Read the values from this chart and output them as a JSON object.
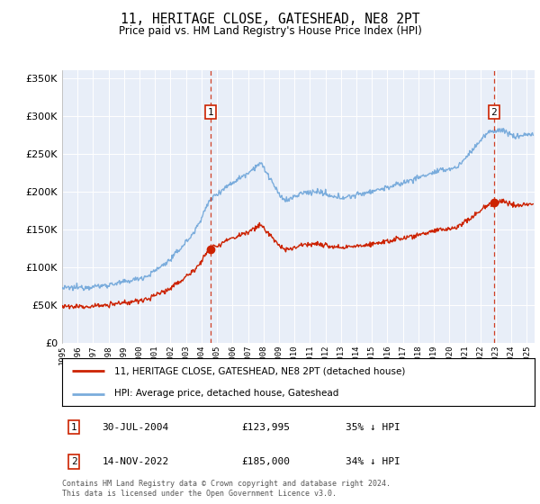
{
  "title": "11, HERITAGE CLOSE, GATESHEAD, NE8 2PT",
  "subtitle": "Price paid vs. HM Land Registry's House Price Index (HPI)",
  "legend_line1": "11, HERITAGE CLOSE, GATESHEAD, NE8 2PT (detached house)",
  "legend_line2": "HPI: Average price, detached house, Gateshead",
  "sale1_date": "30-JUL-2004",
  "sale1_price": "£123,995",
  "sale1_hpi": "35% ↓ HPI",
  "sale1_year": 2004.58,
  "sale1_price_val": 123995,
  "sale2_date": "14-NOV-2022",
  "sale2_price": "£185,000",
  "sale2_hpi": "34% ↓ HPI",
  "sale2_year": 2022.87,
  "sale2_price_val": 185000,
  "ymax": 360000,
  "ymin": 0,
  "xmin": 1995.0,
  "xmax": 2025.5,
  "red_color": "#cc2200",
  "blue_color": "#7aacdc",
  "dot_red": "#cc2200",
  "background_plot": "#e8eef8",
  "grid_color": "#ffffff",
  "footer_text": "Contains HM Land Registry data © Crown copyright and database right 2024.\nThis data is licensed under the Open Government Licence v3.0."
}
